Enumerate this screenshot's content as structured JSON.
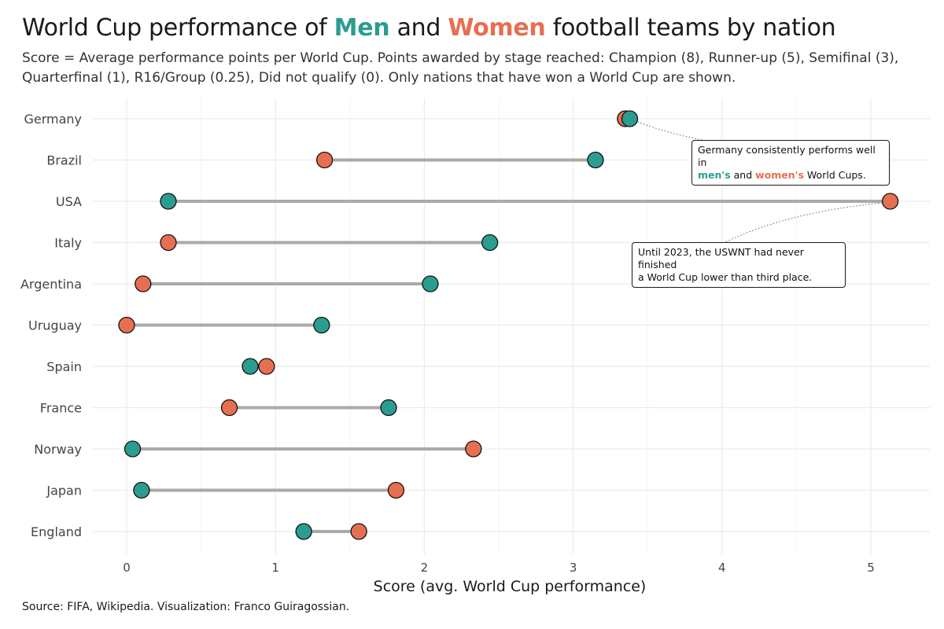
{
  "header": {
    "title_prefix": "World Cup performance of ",
    "title_men": "Men",
    "title_and": " and ",
    "title_women": "Women",
    "title_suffix": " football teams by nation",
    "subtitle": "Score = Average performance points per World Cup. Points awarded by stage reached: Champion (8), Runner-up (5), Semifinal (3), Quarterfinal (1), R16/Group (0.25), Did not qualify (0). Only nations that have won a World Cup are shown."
  },
  "annotations": {
    "germany": {
      "line1": "Germany consistently performs well in",
      "men": "men's",
      "and": " and ",
      "women": "women's",
      "rest": " World Cups."
    },
    "usa": {
      "line1": "Until 2023, the USWNT had never finished",
      "line2": "a World Cup lower than third place."
    }
  },
  "caption": "Source: FIFA, Wikipedia. Visualization: Franco Guiragossian.",
  "colors": {
    "men": "#2a9d8f",
    "women": "#e76f51",
    "segment": "#aaaaaa",
    "grid": "#ebebeb"
  },
  "chart_data": {
    "type": "dumbbell",
    "xlabel": "Score (avg. World Cup performance)",
    "ylabel": "",
    "xlim": [
      -0.15,
      5.4
    ],
    "xticks": [
      0,
      1,
      2,
      3,
      4,
      5
    ],
    "grid": true,
    "categories": [
      "Germany",
      "Brazil",
      "USA",
      "Italy",
      "Argentina",
      "Uruguay",
      "Spain",
      "France",
      "Norway",
      "Japan",
      "England"
    ],
    "series": [
      {
        "name": "Men",
        "values": [
          3.38,
          3.15,
          0.28,
          2.44,
          2.04,
          1.31,
          0.83,
          1.76,
          0.04,
          0.1,
          1.19
        ]
      },
      {
        "name": "Women",
        "values": [
          3.35,
          1.33,
          5.13,
          0.28,
          0.11,
          0.0,
          0.94,
          0.69,
          2.33,
          1.81,
          1.56
        ]
      }
    ]
  }
}
